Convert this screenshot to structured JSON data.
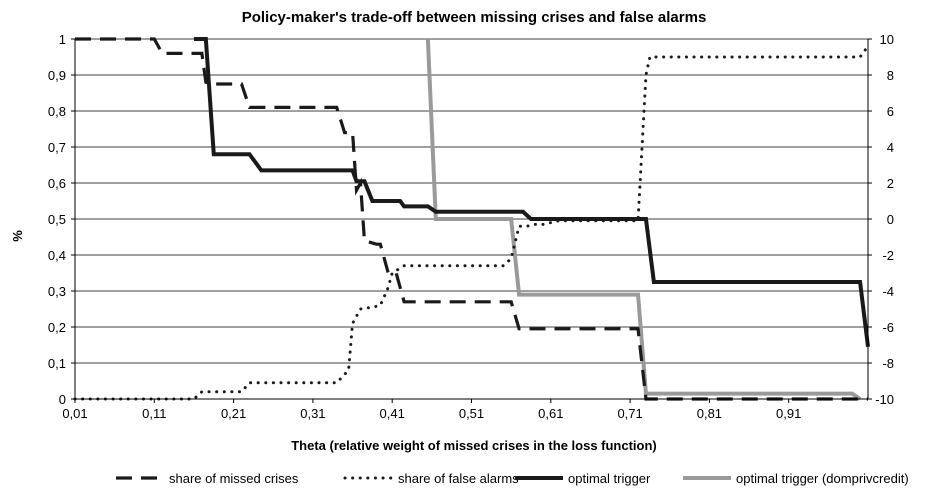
{
  "chart_data": {
    "type": "line",
    "title": "Policy-maker's trade-off between missing crises and false alarms",
    "xlabel": "Theta (relative weight of missed crises in the loss function)",
    "ylabel": "%",
    "xlim": [
      0.01,
      1.01
    ],
    "ylim": [
      0,
      1
    ],
    "y2lim": [
      -10,
      10
    ],
    "grid": "horizontal",
    "legend": "bottom",
    "x_ticks": [
      "0,01",
      "0,11",
      "0,21",
      "0,31",
      "0,41",
      "0,51",
      "0,61",
      "0,71",
      "0,81",
      "0,91"
    ],
    "x_tick_values": [
      0.01,
      0.11,
      0.21,
      0.31,
      0.41,
      0.51,
      0.61,
      0.71,
      0.81,
      0.91
    ],
    "y_ticks": [
      "0",
      "0,1",
      "0,2",
      "0,3",
      "0,4",
      "0,5",
      "0,6",
      "0,7",
      "0,8",
      "0,9",
      "1"
    ],
    "y_tick_values": [
      0,
      0.1,
      0.2,
      0.3,
      0.4,
      0.5,
      0.6,
      0.7,
      0.8,
      0.9,
      1
    ],
    "y2_ticks": [
      "-10",
      "-8",
      "-6",
      "-4",
      "-2",
      "0",
      "2",
      "4",
      "6",
      "8",
      "10"
    ],
    "y2_tick_values": [
      -10,
      -8,
      -6,
      -4,
      -2,
      0,
      2,
      4,
      6,
      8,
      10
    ],
    "series": [
      {
        "name": "share of missed crises",
        "axis": "left",
        "color": "#1a1a1a",
        "style": "dashed",
        "points": [
          [
            0.01,
            1
          ],
          [
            0.11,
            1
          ],
          [
            0.12,
            0.96
          ],
          [
            0.17,
            0.96
          ],
          [
            0.175,
            0.88
          ],
          [
            0.185,
            0.875
          ],
          [
            0.22,
            0.875
          ],
          [
            0.23,
            0.81
          ],
          [
            0.34,
            0.81
          ],
          [
            0.35,
            0.74
          ],
          [
            0.36,
            0.74
          ],
          [
            0.365,
            0.58
          ],
          [
            0.37,
            0.6
          ],
          [
            0.375,
            0.44
          ],
          [
            0.39,
            0.43
          ],
          [
            0.395,
            0.43
          ],
          [
            0.405,
            0.35
          ],
          [
            0.415,
            0.35
          ],
          [
            0.425,
            0.27
          ],
          [
            0.435,
            0.27
          ],
          [
            0.56,
            0.27
          ],
          [
            0.57,
            0.195
          ],
          [
            0.72,
            0.195
          ],
          [
            0.73,
            0
          ],
          [
            1.01,
            0
          ]
        ]
      },
      {
        "name": "share of false alarms",
        "axis": "left",
        "color": "#1a1a1a",
        "style": "dotted",
        "points": [
          [
            0.01,
            0
          ],
          [
            0.16,
            0
          ],
          [
            0.17,
            0.02
          ],
          [
            0.22,
            0.02
          ],
          [
            0.23,
            0.045
          ],
          [
            0.34,
            0.045
          ],
          [
            0.355,
            0.08
          ],
          [
            0.36,
            0.21
          ],
          [
            0.37,
            0.25
          ],
          [
            0.385,
            0.255
          ],
          [
            0.395,
            0.26
          ],
          [
            0.405,
            0.31
          ],
          [
            0.41,
            0.35
          ],
          [
            0.425,
            0.37
          ],
          [
            0.55,
            0.37
          ],
          [
            0.56,
            0.39
          ],
          [
            0.57,
            0.48
          ],
          [
            0.58,
            0.48
          ],
          [
            0.59,
            0.485
          ],
          [
            0.6,
            0.485
          ],
          [
            0.62,
            0.495
          ],
          [
            0.72,
            0.495
          ],
          [
            0.73,
            0.9
          ],
          [
            0.735,
            0.95
          ],
          [
            0.76,
            0.95
          ],
          [
            1.0,
            0.95
          ],
          [
            1.01,
            0.98
          ]
        ]
      },
      {
        "name": "optimal trigger",
        "axis": "right",
        "color": "#1a1a1a",
        "style": "solid",
        "points": [
          [
            0.16,
            10
          ],
          [
            0.175,
            10
          ],
          [
            0.185,
            3.6
          ],
          [
            0.23,
            3.6
          ],
          [
            0.245,
            2.7
          ],
          [
            0.36,
            2.7
          ],
          [
            0.365,
            2.1
          ],
          [
            0.375,
            2.1
          ],
          [
            0.385,
            1.0
          ],
          [
            0.42,
            1.0
          ],
          [
            0.425,
            0.7
          ],
          [
            0.455,
            0.7
          ],
          [
            0.465,
            0.4
          ],
          [
            0.575,
            0.4
          ],
          [
            0.585,
            0
          ],
          [
            0.73,
            0
          ],
          [
            0.74,
            -3.5
          ],
          [
            1.0,
            -3.5
          ],
          [
            1.01,
            -7.1
          ]
        ]
      },
      {
        "name": "optimal trigger (domprivcredit)",
        "axis": "right",
        "color": "#9a9a9a",
        "style": "solid",
        "points": [
          [
            0.455,
            10
          ],
          [
            0.465,
            0
          ],
          [
            0.56,
            0
          ],
          [
            0.57,
            -4.2
          ],
          [
            0.72,
            -4.2
          ],
          [
            0.73,
            -9.7
          ],
          [
            0.99,
            -9.7
          ],
          [
            1.0,
            -10
          ]
        ]
      }
    ]
  }
}
